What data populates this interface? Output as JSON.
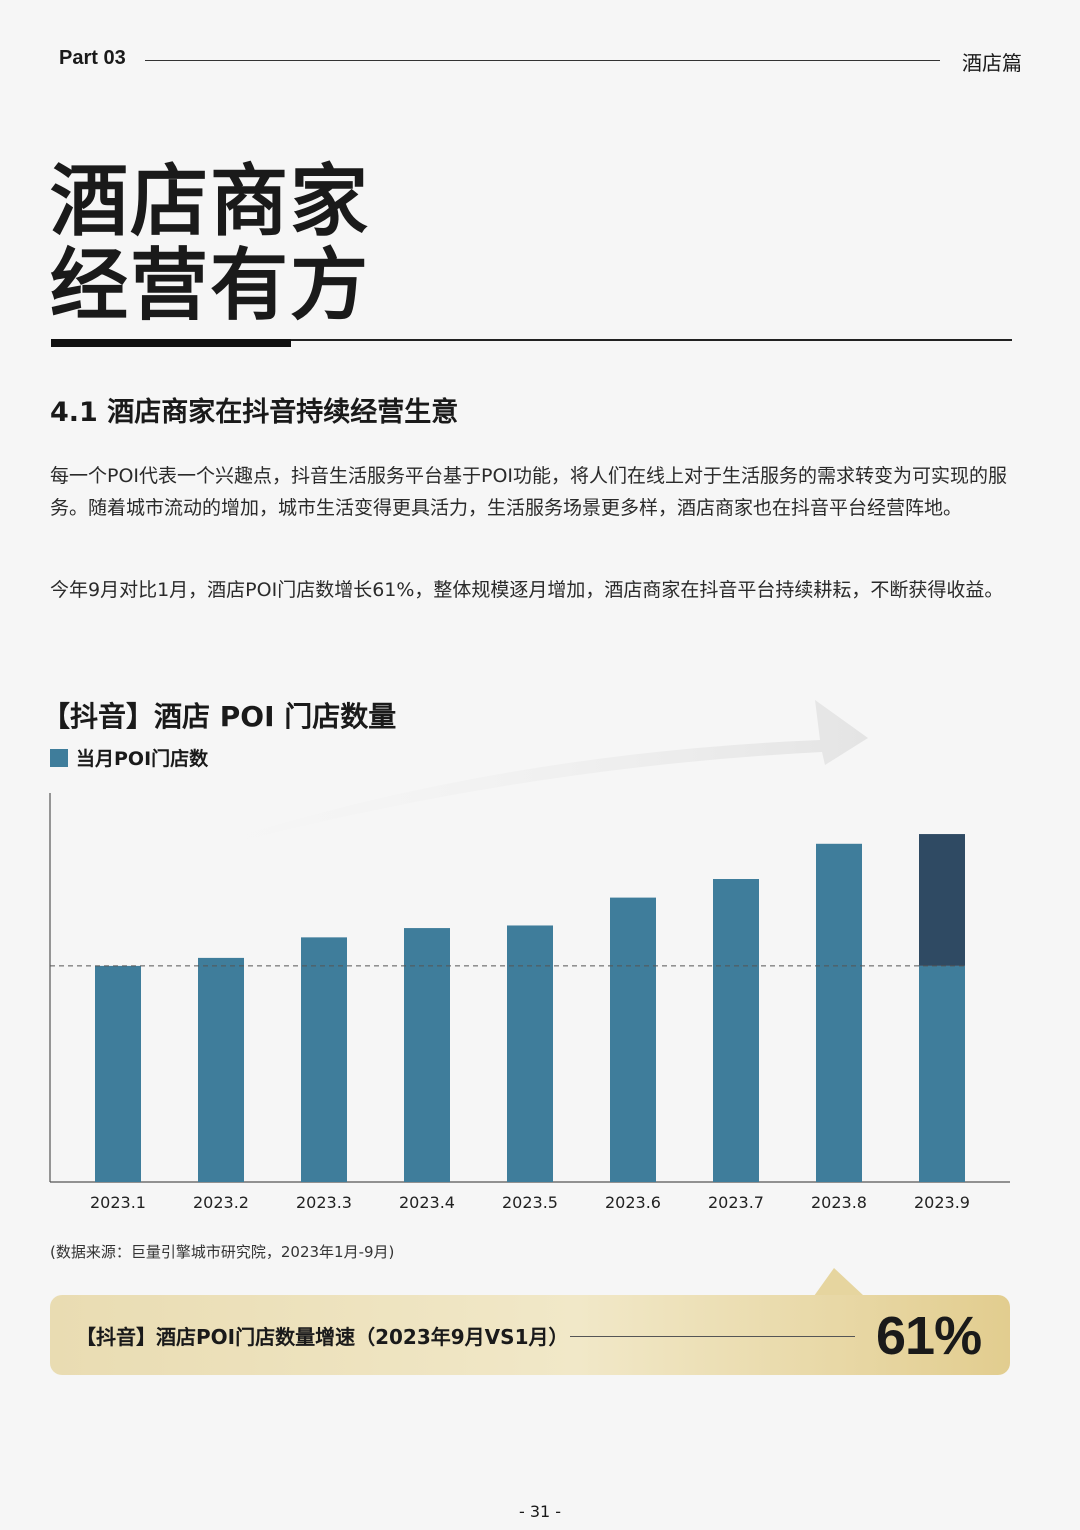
{
  "header": {
    "part": "Part 03",
    "section": "酒店篇"
  },
  "title": {
    "line1": "酒店商家",
    "line2": "经营有方"
  },
  "section_heading": "4.1 酒店商家在抖音持续经营生意",
  "paragraphs": [
    "每一个POI代表一个兴趣点，抖音生活服务平台基于POI功能，将人们在线上对于生活服务的需求转变为可实现的服务。随着城市流动的增加，城市生活变得更具活力，生活服务场景更多样，酒店商家也在抖音平台经营阵地。",
    "今年9月对比1月，酒店POI门店数增长61%，整体规模逐月增加，酒店商家在抖音平台持续耕耘，不断获得收益。"
  ],
  "chart_data": {
    "type": "bar",
    "title": "【抖音】酒店 POI 门店数量",
    "series": [
      {
        "name": "当月POI门店数",
        "values": [
          100,
          103.7,
          113.2,
          117.5,
          118.7,
          131.6,
          140.2,
          156.5,
          161
        ]
      }
    ],
    "categories": [
      "2023.1",
      "2023.2",
      "2023.3",
      "2023.4",
      "2023.5",
      "2023.6",
      "2023.7",
      "2023.8",
      "2023.9"
    ],
    "ylim": [
      0,
      180
    ],
    "reference_line": 100,
    "colors": {
      "bar": "#3f7d9b",
      "highlight": "#2f4a63",
      "reference": "#555555"
    },
    "grid": false,
    "legend": "top-left"
  },
  "source": "(数据来源：巨量引擎城市研究院，2023年1月-9月)",
  "banner": {
    "label": "【抖音】酒店POI门店数量增速（2023年9月VS1月）",
    "value": "61%"
  },
  "page_number": "- 31 -"
}
